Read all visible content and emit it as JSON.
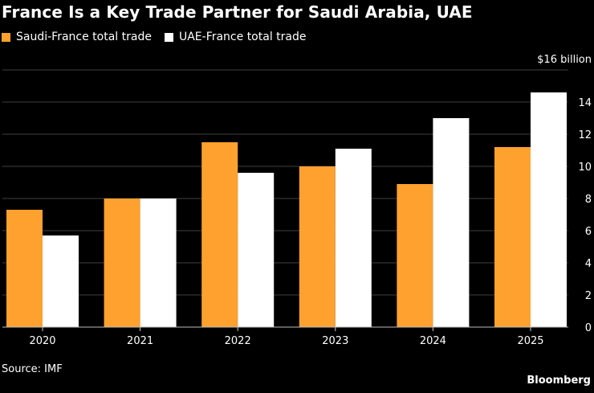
{
  "chart_data": {
    "type": "bar",
    "title": "France Is a Key Trade Partner for Saudi Arabia, UAE",
    "categories": [
      "2020",
      "2021",
      "2022",
      "2023",
      "2024",
      "2025"
    ],
    "series": [
      {
        "name": "Saudi-France total trade",
        "values": [
          7.3,
          8.0,
          11.5,
          10.0,
          8.9,
          11.2
        ],
        "color": "#FFA12E"
      },
      {
        "name": "UAE-France total trade",
        "values": [
          5.7,
          8.0,
          9.6,
          11.1,
          13.0,
          14.6
        ],
        "color": "#FFFFFF"
      }
    ],
    "y_unit_label": "$16 billion",
    "y_ticks": [
      "0",
      "2",
      "4",
      "6",
      "8",
      "10",
      "12",
      "14"
    ],
    "ylim": [
      0,
      16
    ],
    "grid": true,
    "legend_position": "top-left"
  },
  "footer": {
    "source": "Source: IMF",
    "brand": "Bloomberg"
  }
}
